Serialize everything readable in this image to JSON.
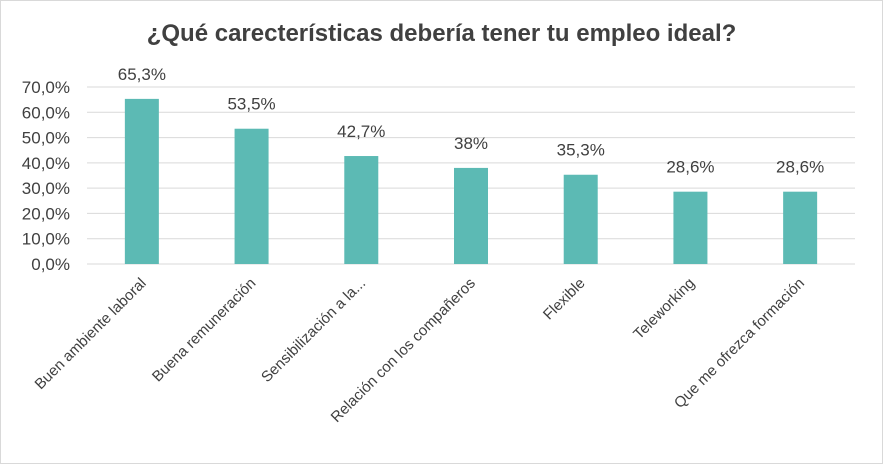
{
  "chart_data": {
    "type": "bar",
    "title": "¿Qué carecterísticas debería tener tu empleo ideal?",
    "categories": [
      "Buen ambiente laboral",
      "Buena remuneración",
      "Sensibilización a la...",
      "Relación con los compañeros",
      "Flexible",
      "Teleworking",
      "Que me ofrezca formación"
    ],
    "values": [
      65.3,
      53.5,
      42.7,
      38,
      35.3,
      28.6,
      28.6
    ],
    "data_labels": [
      "65,3%",
      "53,5%",
      "42,7%",
      "38%",
      "35,3%",
      "28,6%",
      "28,6%"
    ],
    "y_ticks": [
      "0,0%",
      "10,0%",
      "20,0%",
      "30,0%",
      "40,0%",
      "50,0%",
      "60,0%",
      "70,0%"
    ],
    "ylim": [
      0,
      70
    ],
    "grid": true,
    "bar_color": "#5cbab4",
    "grid_color": "#d9d9d9"
  }
}
